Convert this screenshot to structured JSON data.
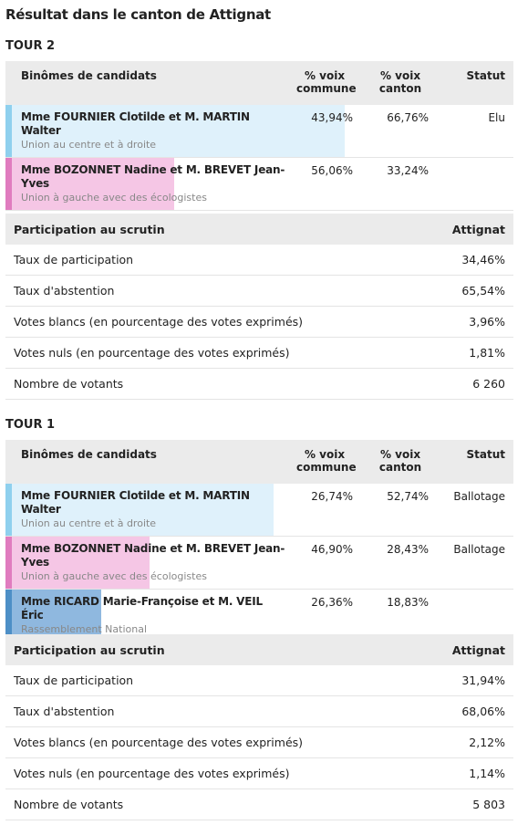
{
  "title": "Résultat dans le canton de Attignat",
  "rounds": [
    {
      "label": "TOUR 2",
      "candidates_table": {
        "headers": [
          "Binômes de candidats",
          "% voix commune",
          "% voix canton",
          "Statut"
        ],
        "rows": [
          {
            "name": "Mme FOURNIER Clotilde et M. MARTIN Walter",
            "party": "Union au centre et à droite",
            "commune": "43,94%",
            "canton": "66,76%",
            "status": "Elu",
            "color": "#8fd0ee",
            "bar_color": "#dff1fb"
          },
          {
            "name": "Mme BOZONNET Nadine et M. BREVET Jean-Yves",
            "party": "Union à gauche avec des écologistes",
            "commune": "56,06%",
            "canton": "33,24%",
            "color": "#e07cbf",
            "bar_color": "#f5c6e5"
          }
        ]
      },
      "participation_table": {
        "headers": [
          "Participation au scrutin",
          "Attignat"
        ],
        "rows": [
          [
            "Taux de participation",
            "34,46%"
          ],
          [
            "Taux d'abstention",
            "65,54%"
          ],
          [
            "Votes blancs (en pourcentage des votes exprimés)",
            "3,96%"
          ],
          [
            "Votes nuls (en pourcentage des votes exprimés)",
            "1,81%"
          ],
          [
            "Nombre de votants",
            "6 260"
          ]
        ]
      }
    },
    {
      "label": "TOUR 1",
      "candidates_table": {
        "headers": [
          "Binômes de candidats",
          "% voix commune",
          "% voix canton",
          "Statut"
        ],
        "rows": [
          {
            "name": "Mme FOURNIER Clotilde et M. MARTIN Walter",
            "party": "Union au centre et à droite",
            "commune": "26,74%",
            "canton": "52,74%",
            "status": "Ballotage",
            "color": "#8fd0ee",
            "bar_color": "#dff1fb"
          },
          {
            "name": "Mme BOZONNET Nadine et M. BREVET Jean-Yves",
            "party": "Union à gauche avec des écologistes",
            "commune": "46,90%",
            "canton": "28,43%",
            "status": "Ballotage",
            "color": "#e07cbf",
            "bar_color": "#f5c6e5"
          },
          {
            "name": "Mme RICARD Marie-Françoise et M. VEIL Éric",
            "party": "Rassemblement National",
            "commune": "26,36%",
            "canton": "18,83%",
            "color": "#4d8fc6",
            "bar_color": "#8fb8df"
          }
        ]
      },
      "participation_table": {
        "headers": [
          "Participation au scrutin",
          "Attignat"
        ],
        "rows": [
          [
            "Taux de participation",
            "31,94%"
          ],
          [
            "Taux d'abstention",
            "68,06%"
          ],
          [
            "Votes blancs (en pourcentage des votes exprimés)",
            "2,12%"
          ],
          [
            "Votes nuls (en pourcentage des votes exprimés)",
            "1,14%"
          ],
          [
            "Nombre de votants",
            "5 803"
          ]
        ]
      }
    }
  ]
}
